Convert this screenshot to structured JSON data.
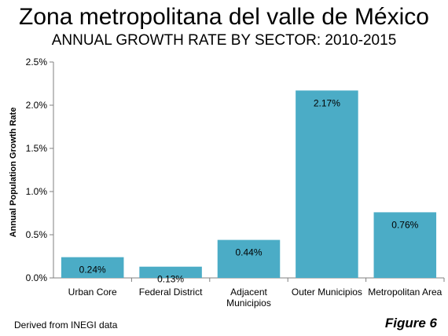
{
  "header": {
    "title": "Zona metropolitana del valle de México",
    "subtitle": "ANNUAL GROWTH RATE BY SECTOR: 2010-2015"
  },
  "chart_data": {
    "type": "bar",
    "categories": [
      [
        "Urban Core"
      ],
      [
        "Federal District"
      ],
      [
        "Adjacent",
        "Municipios"
      ],
      [
        "Outer Municipios"
      ],
      [
        "Metropolitan Area"
      ]
    ],
    "values": [
      0.24,
      0.13,
      0.44,
      2.17,
      0.76
    ],
    "data_labels": [
      "0.24%",
      "0.13%",
      "0.44%",
      "2.17%",
      "0.76%"
    ],
    "xlabel": "",
    "ylabel": "Annual Population Growth Rate",
    "ylim": [
      0,
      2.5
    ],
    "yticks": [
      0,
      0.5,
      1.0,
      1.5,
      2.0,
      2.5
    ],
    "ytick_labels": [
      "0.0%",
      "0.5%",
      "1.0%",
      "1.5%",
      "2.0%",
      "2.5%"
    ],
    "grid": false,
    "legend": "none",
    "bar_color": "#4BACC6"
  },
  "footer": {
    "source": "Derived from INEGI data",
    "figure": "Figure 6"
  }
}
